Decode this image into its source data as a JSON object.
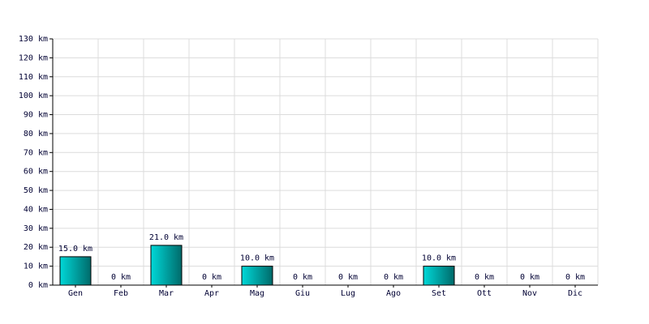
{
  "chart_data": {
    "type": "bar",
    "categories": [
      "Gen",
      "Feb",
      "Mar",
      "Apr",
      "Mag",
      "Giu",
      "Lug",
      "Ago",
      "Set",
      "Ott",
      "Nov",
      "Dic"
    ],
    "values": [
      15,
      0,
      21,
      0,
      10,
      0,
      0,
      0,
      10,
      0,
      0,
      0
    ],
    "value_labels": [
      "15.0 km",
      "0 km",
      "21.0 km",
      "0 km",
      "10.0 km",
      "0 km",
      "0 km",
      "0 km",
      "10.0 km",
      "0 km",
      "0 km",
      "0 km"
    ],
    "color": "#00d8d8",
    "ylim": [
      0,
      130
    ],
    "yticks": [
      {
        "value": 0,
        "label": "0 km"
      },
      {
        "value": 10,
        "label": "10 km"
      },
      {
        "value": 20,
        "label": "20 km"
      },
      {
        "value": 30,
        "label": "30 km"
      },
      {
        "value": 40,
        "label": "40 km"
      },
      {
        "value": 50,
        "label": "50 km"
      },
      {
        "value": 60,
        "label": "60 km"
      },
      {
        "value": 70,
        "label": "70 km"
      },
      {
        "value": 80,
        "label": "80 km"
      },
      {
        "value": 90,
        "label": "90 km"
      },
      {
        "value": 100,
        "label": "100 km"
      },
      {
        "value": 110,
        "label": "110 km"
      },
      {
        "value": 120,
        "label": "120 km"
      },
      {
        "value": 130,
        "label": "130 km"
      }
    ],
    "grid": true
  }
}
